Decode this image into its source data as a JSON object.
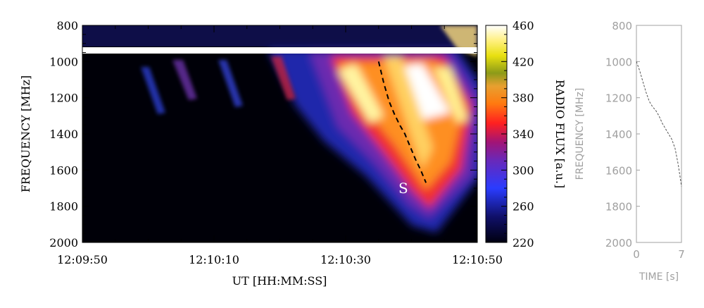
{
  "colors": {
    "background": "#000000",
    "axis": "#000000",
    "inset_axis": "#a0a0a0"
  },
  "chart_data": [
    {
      "type": "heatmap",
      "title": "",
      "xlabel": "UT [HH:MM:SS]",
      "ylabel": "FREQUENCY [MHz]",
      "x_ticks": [
        "12:09:50",
        "12:10:10",
        "12:10:30",
        "12:10:50"
      ],
      "x_range_seconds": [
        0,
        60
      ],
      "y_ticks": [
        800,
        1000,
        1200,
        1400,
        1600,
        1800,
        2000
      ],
      "ylim": [
        2000,
        800
      ],
      "annotation": {
        "text": "S"
      },
      "colorbar": {
        "label": "RADIO FLUX [a.u.]",
        "ticks": [
          220,
          260,
          300,
          340,
          380,
          420,
          460
        ],
        "range": [
          220,
          460
        ]
      },
      "drift_path": {
        "t_seconds": [
          45.0,
          45.8,
          46.6,
          47.4,
          48.2,
          49.0,
          49.8,
          50.6,
          51.4,
          52.2
        ],
        "freq_mhz": [
          1000,
          1120,
          1220,
          1290,
          1350,
          1400,
          1470,
          1540,
          1600,
          1670
        ]
      }
    },
    {
      "type": "line",
      "title": "",
      "xlabel": "TIME [s]",
      "ylabel": "FREQUENCY [MHz]",
      "x_ticks": [
        0,
        7
      ],
      "xlim": [
        0,
        7
      ],
      "y_ticks": [
        800,
        1000,
        1200,
        1400,
        1600,
        1800,
        2000
      ],
      "ylim": [
        2000,
        800
      ],
      "x": [
        0,
        0.5,
        1,
        1.5,
        2,
        2.5,
        3,
        3.5,
        4,
        4.5,
        5,
        5.5,
        6,
        6.5,
        7
      ],
      "y": [
        1000,
        1050,
        1110,
        1170,
        1220,
        1250,
        1270,
        1300,
        1340,
        1370,
        1400,
        1430,
        1480,
        1570,
        1690
      ]
    }
  ]
}
